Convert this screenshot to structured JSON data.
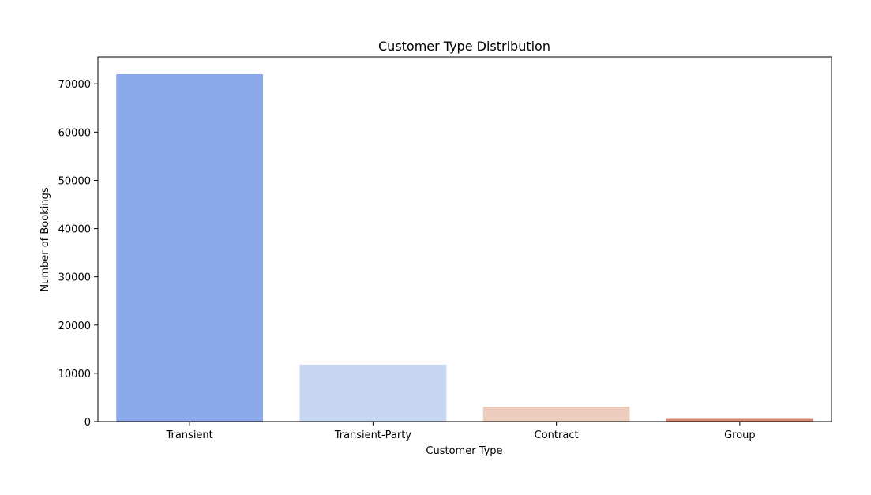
{
  "chart_data": {
    "type": "bar",
    "title": "Customer Type Distribution",
    "xlabel": "Customer Type",
    "ylabel": "Number of Bookings",
    "categories": [
      "Transient",
      "Transient-Party",
      "Contract",
      "Group"
    ],
    "values": [
      72000,
      11800,
      3100,
      580
    ],
    "colors": [
      "#8aa8ea",
      "#c6d5f0",
      "#ecccbc",
      "#dc8671"
    ],
    "ylim": [
      0,
      75600
    ],
    "yticks": [
      0,
      10000,
      20000,
      30000,
      40000,
      50000,
      60000,
      70000
    ],
    "grid": false,
    "legend": "none"
  }
}
